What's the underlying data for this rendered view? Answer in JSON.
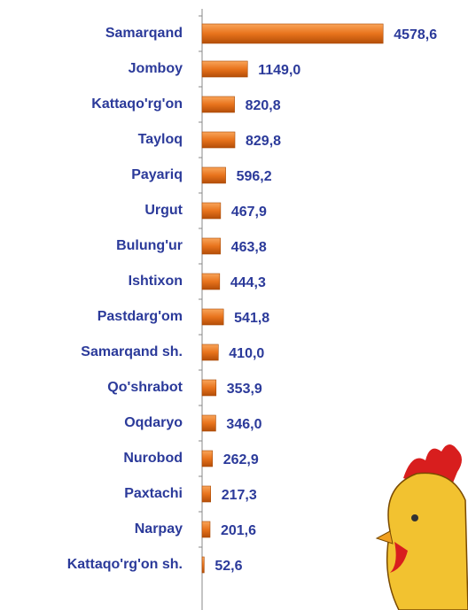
{
  "chart_data": {
    "type": "bar",
    "orientation": "horizontal",
    "categories": [
      "Samarqand",
      "Jomboy",
      "Kattaqo'rg'on",
      "Tayloq",
      "Payariq",
      "Urgut",
      "Bulung'ur",
      "Ishtixon",
      "Pastdarg'om",
      "Samarqand sh.",
      "Qo'shrabot",
      "Oqdaryo",
      "Nurobod",
      "Paxtachi",
      "Narpay",
      "Kattaqo'rg'on sh."
    ],
    "values": [
      4578.6,
      1149.0,
      820.8,
      829.8,
      596.2,
      467.9,
      463.8,
      444.3,
      541.8,
      410.0,
      353.9,
      346.0,
      262.9,
      217.3,
      201.6,
      52.6
    ],
    "value_labels": [
      "4578,6",
      "1149,0",
      "820,8",
      "829,8",
      "596,2",
      "467,9",
      "463,8",
      "444,3",
      "541,8",
      "410,0",
      "353,9",
      "346,0",
      "262,9",
      "217,3",
      "201,6",
      "52,6"
    ],
    "color": "#e8731c",
    "xlim": [
      0,
      5000
    ]
  }
}
